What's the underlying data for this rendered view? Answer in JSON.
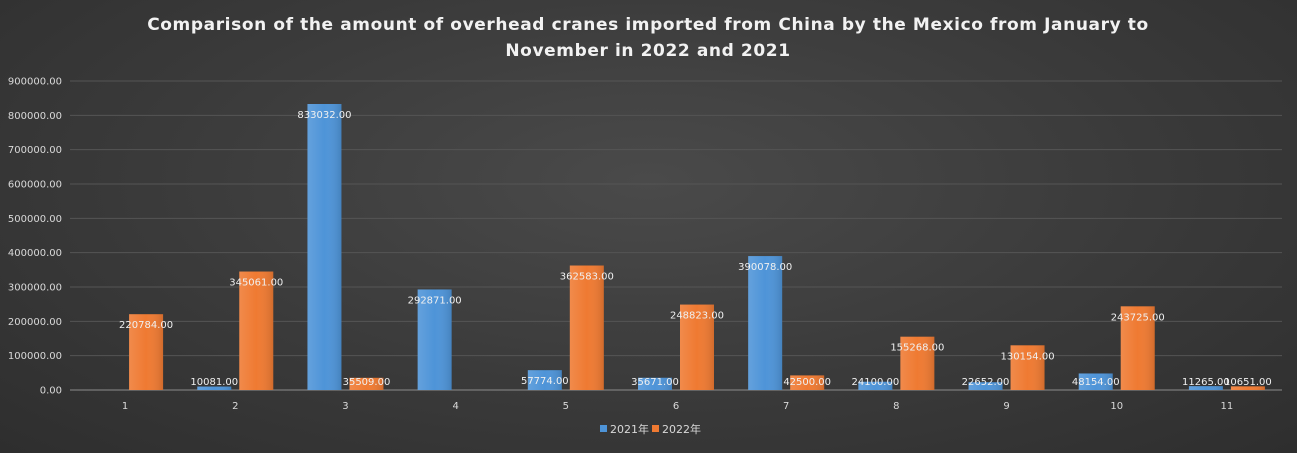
{
  "chart_data": {
    "type": "bar",
    "title_lines": [
      "Comparison of the amount of overhead cranes imported from China by the Mexico from January to",
      "November in 2022 and 2021"
    ],
    "categories": [
      "1",
      "2",
      "3",
      "4",
      "5",
      "6",
      "7",
      "8",
      "9",
      "10",
      "11"
    ],
    "series": [
      {
        "name": "2021年",
        "color": "#4e94d8",
        "values": [
          null,
          10081.0,
          833032.0,
          292871.0,
          57774.0,
          35671.0,
          390078.0,
          24100.0,
          22652.0,
          48154.0,
          11265.0
        ],
        "labels": [
          "",
          "10081.00",
          "833032.00",
          "292871.00",
          "57774.00",
          "35671.00",
          "390078.00",
          "24100.00",
          "22652.00",
          "48154.00",
          "11265.00"
        ]
      },
      {
        "name": "2022年",
        "color": "#ef7a32",
        "values": [
          220784.0,
          345061.0,
          35509.0,
          null,
          362583.0,
          248823.0,
          42500.0,
          155268.0,
          130154.0,
          243725.0,
          10651.0
        ],
        "labels": [
          "220784.00",
          "345061.00",
          "35509.00",
          "",
          "362583.00",
          "248823.00",
          "42500.00",
          "155268.00",
          "130154.00",
          "243725.00",
          "10651.00"
        ]
      }
    ],
    "ylim": [
      0,
      900000
    ],
    "yticks": [
      0,
      100000,
      200000,
      300000,
      400000,
      500000,
      600000,
      700000,
      800000,
      900000
    ],
    "ytick_labels": [
      "0.00",
      "100000.00",
      "200000.00",
      "300000.00",
      "400000.00",
      "500000.00",
      "600000.00",
      "700000.00",
      "800000.00",
      "900000.00"
    ],
    "grid": true,
    "legend_position": "bottom"
  }
}
